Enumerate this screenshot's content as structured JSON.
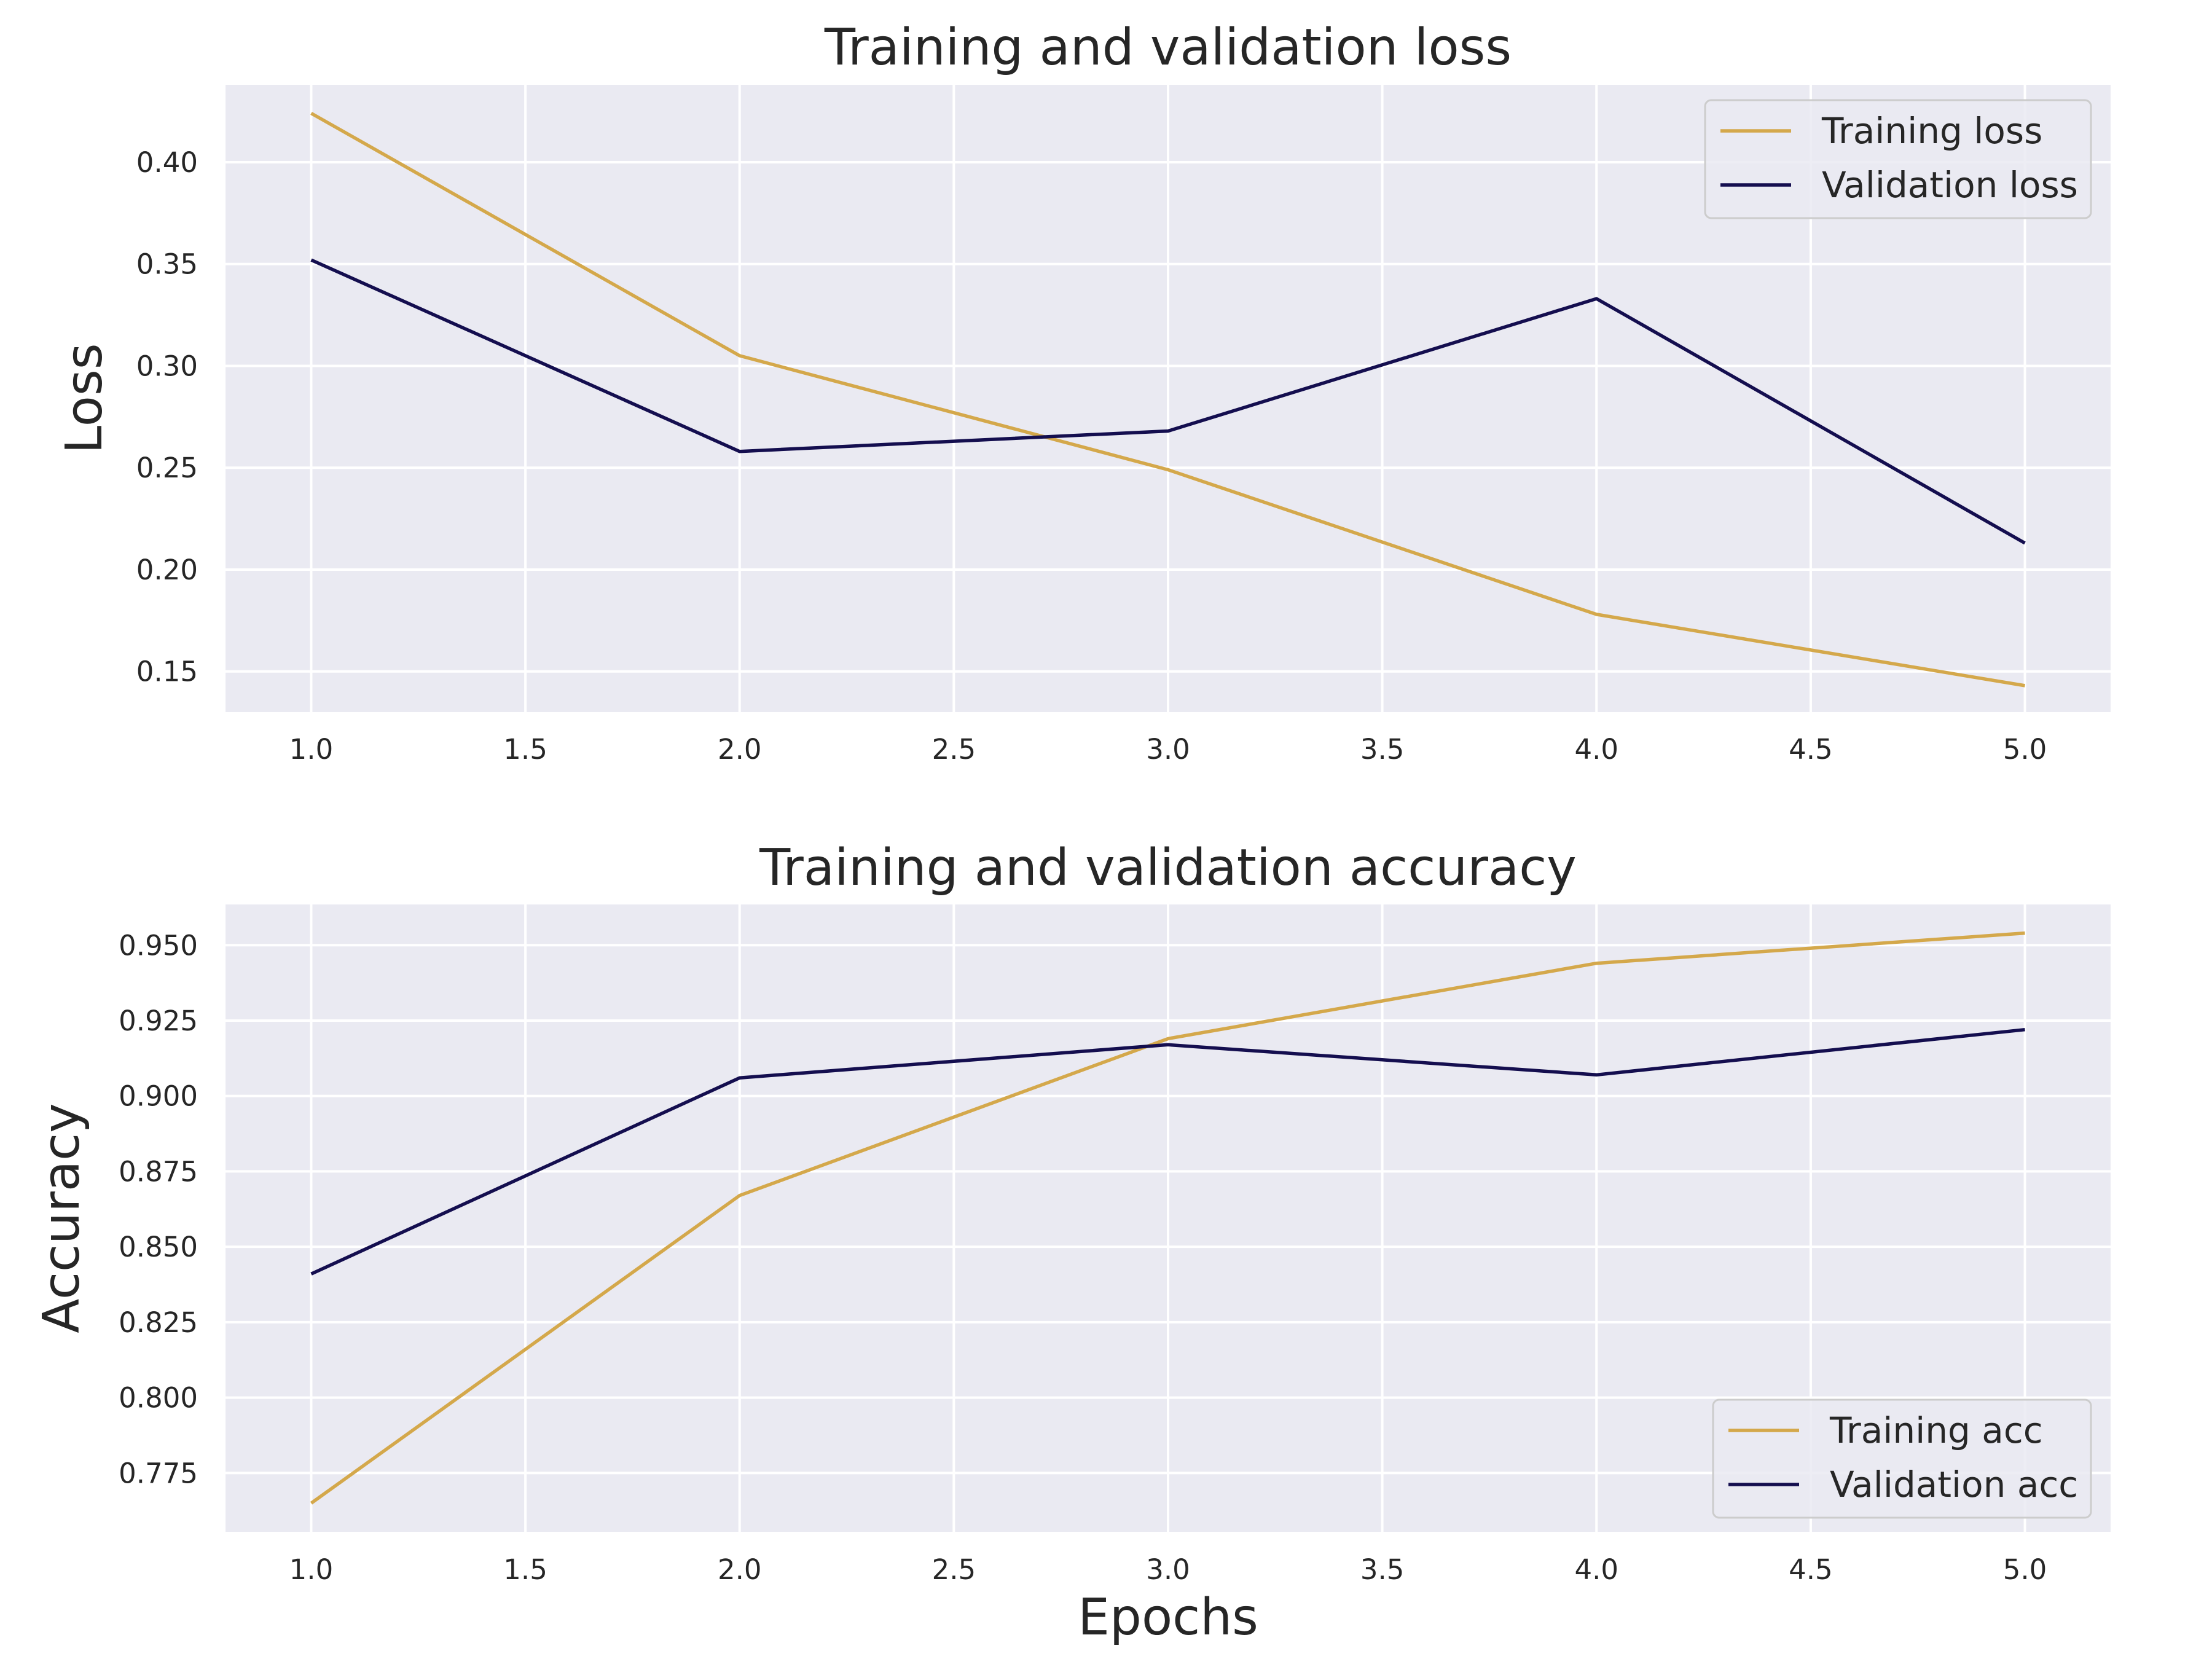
{
  "chart_data": [
    {
      "type": "line",
      "title": "Training and validation loss",
      "xlabel": "",
      "ylabel": "Loss",
      "xlim": [
        0.8,
        5.2
      ],
      "ylim": [
        0.13,
        0.438
      ],
      "xticks": [
        "1.0",
        "1.5",
        "2.0",
        "2.5",
        "3.0",
        "3.5",
        "4.0",
        "4.5",
        "5.0"
      ],
      "yticks": [
        "0.15",
        "0.20",
        "0.25",
        "0.30",
        "0.35",
        "0.40"
      ],
      "grid": true,
      "legend_position": "upper right",
      "x": [
        1,
        2,
        3,
        4,
        5
      ],
      "series": [
        {
          "name": "Training loss",
          "color": "#d4a84b",
          "values": [
            0.424,
            0.305,
            0.249,
            0.178,
            0.143
          ]
        },
        {
          "name": "Validation loss",
          "color": "#140e4f",
          "values": [
            0.352,
            0.258,
            0.268,
            0.333,
            0.213
          ]
        }
      ]
    },
    {
      "type": "line",
      "title": "Training and validation accuracy",
      "xlabel": "Epochs",
      "ylabel": "Accuracy",
      "xlim": [
        0.8,
        5.2
      ],
      "ylim": [
        0.7555,
        0.9635
      ],
      "xticks": [
        "1.0",
        "1.5",
        "2.0",
        "2.5",
        "3.0",
        "3.5",
        "4.0",
        "4.5",
        "5.0"
      ],
      "yticks": [
        "0.775",
        "0.800",
        "0.825",
        "0.850",
        "0.875",
        "0.900",
        "0.925",
        "0.950"
      ],
      "grid": true,
      "legend_position": "lower right",
      "x": [
        1,
        2,
        3,
        4,
        5
      ],
      "series": [
        {
          "name": "Training acc",
          "color": "#d4a84b",
          "values": [
            0.765,
            0.867,
            0.919,
            0.944,
            0.954
          ]
        },
        {
          "name": "Validation acc",
          "color": "#140e4f",
          "values": [
            0.841,
            0.906,
            0.917,
            0.907,
            0.922
          ]
        }
      ]
    }
  ]
}
